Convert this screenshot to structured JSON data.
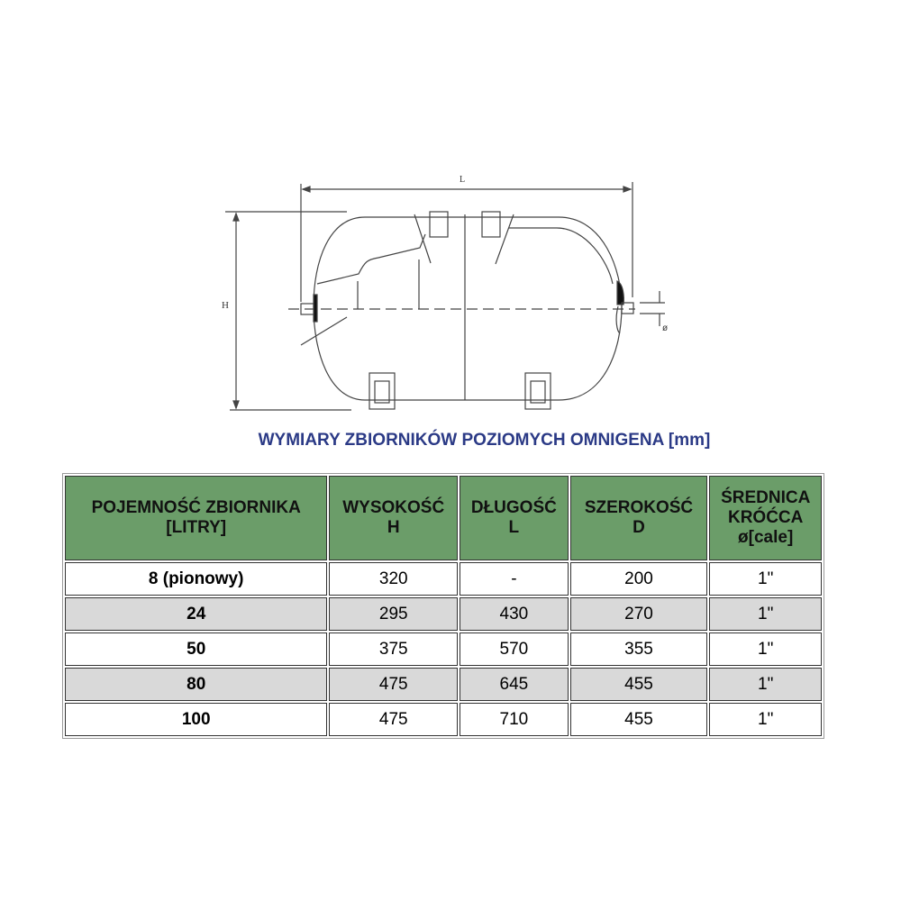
{
  "diagram": {
    "label_length": "L",
    "label_height": "H",
    "label_diameter": "ø"
  },
  "title": "WYMIARY ZBIORNIKÓW POZIOMYCH OMNIGENA [mm]",
  "table": {
    "headers": [
      [
        "POJEMNOŚĆ ZBIORNIKA",
        "[LITRY]"
      ],
      [
        "WYSOKOŚĆ",
        "H"
      ],
      [
        "DŁUGOŚĆ",
        "L"
      ],
      [
        "SZEROKOŚĆ",
        "D"
      ],
      [
        "ŚREDNICA",
        "KRÓĆCA",
        "ø[cale]"
      ]
    ],
    "rows": [
      [
        "8 (pionowy)",
        "320",
        "-",
        "200",
        "1\""
      ],
      [
        "24",
        "295",
        "430",
        "270",
        "1\""
      ],
      [
        "50",
        "375",
        "570",
        "355",
        "1\""
      ],
      [
        "80",
        "475",
        "645",
        "455",
        "1\""
      ],
      [
        "100",
        "475",
        "710",
        "455",
        "1\""
      ]
    ]
  },
  "colors": {
    "header_bg": "#6b9d69",
    "title": "#2b3a86",
    "alt_row": "#d9d9d9"
  }
}
